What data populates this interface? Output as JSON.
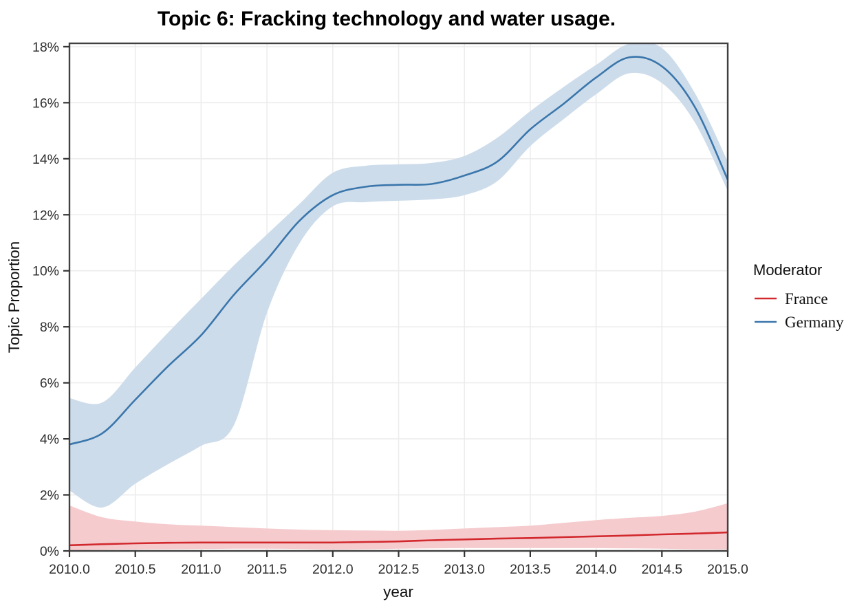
{
  "title": "Topic 6: Fracking technology and water usage.",
  "axes": {
    "x_label": "year",
    "y_label": "Topic Proportion"
  },
  "legend": {
    "title": "Moderator",
    "entries": [
      {
        "label": "France",
        "color": "#d2292e"
      },
      {
        "label": "Germany",
        "color": "#3a76ab"
      }
    ]
  },
  "colors": {
    "france_line": "#d2292e",
    "france_band": "#f5cbce",
    "germany_line": "#3a76ab",
    "germany_band": "#cddceb",
    "gridline": "#ececec",
    "panel_border": "#404040",
    "tick": "#333333"
  },
  "chart_data": {
    "type": "line",
    "title": "Topic 6: Fracking technology and water usage.",
    "xlabel": "year",
    "ylabel": "Topic Proportion",
    "xlim": [
      2010,
      2015
    ],
    "ylim": [
      0,
      18.12
    ],
    "grid": true,
    "x_ticks": [
      "2010.0",
      "2010.5",
      "2011.0",
      "2011.5",
      "2012.0",
      "2012.5",
      "2013.0",
      "2013.5",
      "2014.0",
      "2014.5",
      "2015.0"
    ],
    "x_tick_values": [
      2010.0,
      2010.5,
      2011.0,
      2011.5,
      2012.0,
      2012.5,
      2013.0,
      2013.5,
      2014.0,
      2014.5,
      2015.0
    ],
    "y_ticks": [
      "0%",
      "2%",
      "4%",
      "6%",
      "8%",
      "10%",
      "12%",
      "14%",
      "16%",
      "18%"
    ],
    "y_tick_values": [
      0,
      2,
      4,
      6,
      8,
      10,
      12,
      14,
      16,
      18
    ],
    "legend": {
      "title": "Moderator",
      "position": "right"
    },
    "x": [
      2010.0,
      2010.25,
      2010.5,
      2010.75,
      2011.0,
      2011.25,
      2011.5,
      2011.75,
      2012.0,
      2012.25,
      2012.5,
      2012.75,
      2013.0,
      2013.25,
      2013.5,
      2013.75,
      2014.0,
      2014.25,
      2014.5,
      2014.75,
      2015.0
    ],
    "series": [
      {
        "name": "France",
        "line_color": "#d2292e",
        "band_color": "#f5cbce",
        "values": [
          0.2,
          0.24,
          0.27,
          0.29,
          0.3,
          0.3,
          0.3,
          0.3,
          0.3,
          0.32,
          0.34,
          0.38,
          0.41,
          0.44,
          0.46,
          0.49,
          0.52,
          0.55,
          0.59,
          0.62,
          0.66
        ],
        "band_lower": [
          0.02,
          0.04,
          0.05,
          0.06,
          0.07,
          0.08,
          0.08,
          0.07,
          0.05,
          0.06,
          0.08,
          0.09,
          0.1,
          0.1,
          0.1,
          0.1,
          0.1,
          0.09,
          0.08,
          0.06,
          0.05
        ],
        "band_upper": [
          1.62,
          1.2,
          1.05,
          0.95,
          0.9,
          0.85,
          0.8,
          0.76,
          0.74,
          0.73,
          0.72,
          0.75,
          0.8,
          0.85,
          0.9,
          1.0,
          1.1,
          1.18,
          1.25,
          1.4,
          1.7
        ]
      },
      {
        "name": "Germany",
        "line_color": "#3a76ab",
        "band_color": "#cddceb",
        "values": [
          3.8,
          4.2,
          5.4,
          6.6,
          7.7,
          9.15,
          10.4,
          11.8,
          12.7,
          13.0,
          13.07,
          13.1,
          13.4,
          13.9,
          15.05,
          15.95,
          16.9,
          17.62,
          17.3,
          15.85,
          13.25
        ],
        "band_lower": [
          2.15,
          1.55,
          2.4,
          3.1,
          3.75,
          4.5,
          8.5,
          11.0,
          12.3,
          12.45,
          12.5,
          12.55,
          12.7,
          13.2,
          14.45,
          15.4,
          16.3,
          17.05,
          16.7,
          15.3,
          12.85
        ],
        "band_upper": [
          5.45,
          5.3,
          6.55,
          7.8,
          9.0,
          10.2,
          11.3,
          12.4,
          13.5,
          13.75,
          13.8,
          13.85,
          14.1,
          14.75,
          15.7,
          16.55,
          17.35,
          18.1,
          17.95,
          16.35,
          13.9
        ]
      }
    ]
  }
}
